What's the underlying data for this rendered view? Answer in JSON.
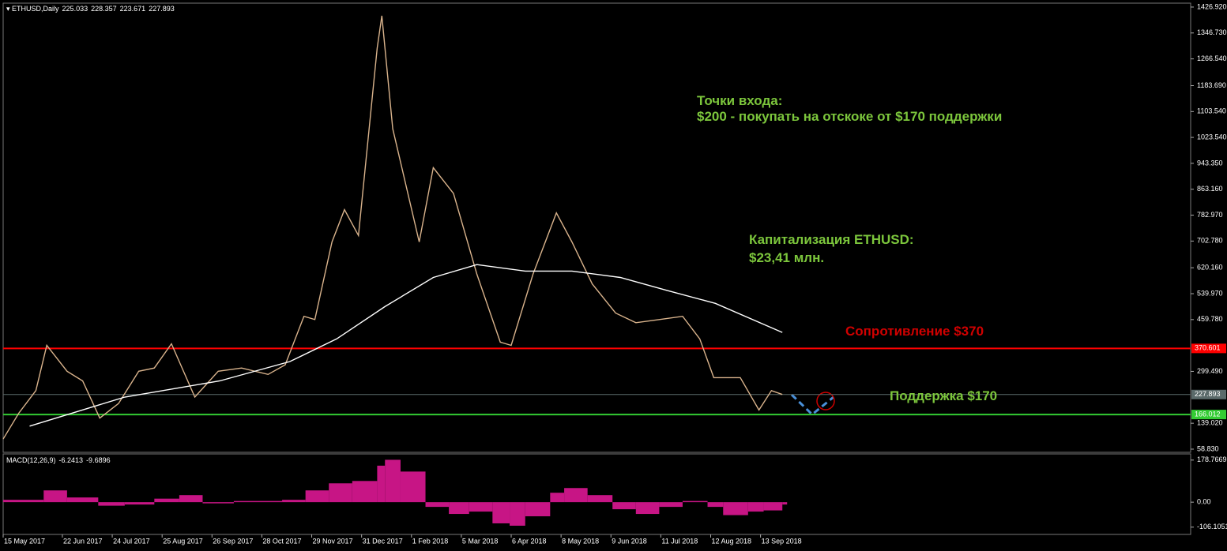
{
  "chart_data": {
    "type": "line",
    "symbol": "ETHUSD,Daily",
    "ohlc": [
      225.033,
      228.357,
      223.671,
      227.893
    ],
    "xlim": [
      "2017-05-15",
      "2019-06-16"
    ],
    "xticks": [
      {
        "value": "2017-05-15",
        "label": "15 May 2017"
      },
      {
        "value": "2017-06-22",
        "label": "22 Jun 2017"
      },
      {
        "value": "2017-07-24",
        "label": "24 Jul 2017"
      },
      {
        "value": "2017-08-25",
        "label": "25 Aug 2017"
      },
      {
        "value": "2017-09-26",
        "label": "26 Sep 2017"
      },
      {
        "value": "2017-10-28",
        "label": "28 Oct 2017"
      },
      {
        "value": "2017-11-29",
        "label": "29 Nov 2017"
      },
      {
        "value": "2017-12-31",
        "label": "31 Dec 2017"
      },
      {
        "value": "2018-02-01",
        "label": "1 Feb 2018"
      },
      {
        "value": "2018-03-05",
        "label": "5 Mar 2018"
      },
      {
        "value": "2018-04-06",
        "label": "6 Apr 2018"
      },
      {
        "value": "2018-05-08",
        "label": "8 May 2018"
      },
      {
        "value": "2018-06-09",
        "label": "9 Jun 2018"
      },
      {
        "value": "2018-07-11",
        "label": "11 Jul 2018"
      },
      {
        "value": "2018-08-12",
        "label": "12 Aug 2018"
      },
      {
        "value": "2018-09-13",
        "label": "13 Sep 2018"
      }
    ],
    "ylim": [
      49,
      1439
    ],
    "yticks": [
      {
        "value": 1426.92,
        "label": "1426.920"
      },
      {
        "value": 1346.73,
        "label": "1346.730"
      },
      {
        "value": 1266.54,
        "label": "1266.540"
      },
      {
        "value": 1183.69,
        "label": "1183.690"
      },
      {
        "value": 1103.54,
        "label": "1103.540"
      },
      {
        "value": 1023.54,
        "label": "1023.540"
      },
      {
        "value": 943.35,
        "label": "943.350"
      },
      {
        "value": 863.16,
        "label": "863.160"
      },
      {
        "value": 782.97,
        "label": "782.970"
      },
      {
        "value": 702.78,
        "label": "702.780"
      },
      {
        "value": 620.16,
        "label": "620.160"
      },
      {
        "value": 539.97,
        "label": "539.970"
      },
      {
        "value": 459.78,
        "label": "459.780"
      },
      {
        "value": 299.49,
        "label": "299.490"
      },
      {
        "value": 139.02,
        "label": "139.020"
      },
      {
        "value": 58.83,
        "label": "58.830"
      }
    ],
    "levels": [
      {
        "value": 370.601,
        "label": "370.601",
        "color": "#ff0000"
      },
      {
        "value": 166.012,
        "label": "166.012",
        "color": "#33cc33"
      },
      {
        "value": 227.893,
        "label": "227.893",
        "color": "#5a6a6a"
      }
    ],
    "series": [
      {
        "color": "#d9b38c",
        "x": [
          "2017-05-15",
          "2017-05-25",
          "2017-06-05",
          "2017-06-12",
          "2017-06-25",
          "2017-07-05",
          "2017-07-16",
          "2017-07-28",
          "2017-08-10",
          "2017-08-20",
          "2017-08-31",
          "2017-09-15",
          "2017-09-30",
          "2017-10-15",
          "2017-11-01",
          "2017-11-12",
          "2017-11-24",
          "2017-12-01",
          "2017-12-12",
          "2017-12-20",
          "2017-12-29",
          "2018-01-10",
          "2018-01-13",
          "2018-01-20",
          "2018-02-06",
          "2018-02-15",
          "2018-02-28",
          "2018-03-15",
          "2018-03-30",
          "2018-04-06",
          "2018-04-20",
          "2018-05-05",
          "2018-05-15",
          "2018-05-28",
          "2018-06-12",
          "2018-06-25",
          "2018-07-10",
          "2018-07-25",
          "2018-08-05",
          "2018-08-14",
          "2018-08-31",
          "2018-09-12",
          "2018-09-20",
          "2018-09-27"
        ],
        "values": [
          90,
          170,
          240,
          380,
          300,
          270,
          155,
          200,
          300,
          310,
          385,
          220,
          300,
          310,
          290,
          320,
          470,
          460,
          700,
          800,
          720,
          1300,
          1400,
          1050,
          700,
          930,
          850,
          600,
          390,
          380,
          600,
          790,
          700,
          570,
          480,
          450,
          460,
          470,
          400,
          280,
          280,
          180,
          240,
          228
        ]
      },
      {
        "color": "#ffffff",
        "x": [
          "2017-06-01",
          "2017-08-01",
          "2017-10-01",
          "2017-11-15",
          "2017-12-15",
          "2018-01-15",
          "2018-02-15",
          "2018-03-15",
          "2018-04-15",
          "2018-05-15",
          "2018-06-15",
          "2018-07-15",
          "2018-08-15",
          "2018-09-27"
        ],
        "values": [
          130,
          220,
          270,
          330,
          400,
          500,
          590,
          630,
          610,
          610,
          590,
          550,
          510,
          420
        ]
      }
    ],
    "macd": {
      "title": "MACD(12,26,9)",
      "readings": [
        -6.2413,
        -9.6896
      ],
      "color": "#c71585",
      "ylim": [
        -137,
        205
      ],
      "yticks": [
        178.7669,
        {
          "value": 0,
          "label": "0.00"
        },
        -106.1051
      ],
      "x": [
        "2017-05-15",
        "2017-06-10",
        "2017-06-25",
        "2017-07-15",
        "2017-08-01",
        "2017-08-20",
        "2017-09-05",
        "2017-09-20",
        "2017-10-10",
        "2017-10-25",
        "2017-11-10",
        "2017-11-25",
        "2017-12-10",
        "2017-12-25",
        "2018-01-10",
        "2018-01-15",
        "2018-01-25",
        "2018-02-10",
        "2018-02-25",
        "2018-03-10",
        "2018-03-25",
        "2018-04-05",
        "2018-04-15",
        "2018-05-01",
        "2018-05-10",
        "2018-05-25",
        "2018-06-10",
        "2018-06-25",
        "2018-07-10",
        "2018-07-25",
        "2018-08-10",
        "2018-08-20",
        "2018-09-05",
        "2018-09-15",
        "2018-09-27"
      ],
      "values": [
        10,
        50,
        20,
        -15,
        -10,
        15,
        30,
        -5,
        5,
        5,
        10,
        50,
        80,
        90,
        155,
        180,
        130,
        -20,
        -50,
        -40,
        -90,
        -100,
        -60,
        40,
        60,
        30,
        -30,
        -50,
        -20,
        5,
        -20,
        -55,
        -40,
        -35,
        -10
      ]
    },
    "annotations": {
      "entry_title": "Точки входа:",
      "entry_text": "$200 - покупать на отскоке от $170 поддержки",
      "cap_title": "Капитализация ETHUSD:",
      "cap_text": "$23,41 млн.",
      "resistance": "Сопротивление $370",
      "support": "Поддержка $170"
    }
  }
}
